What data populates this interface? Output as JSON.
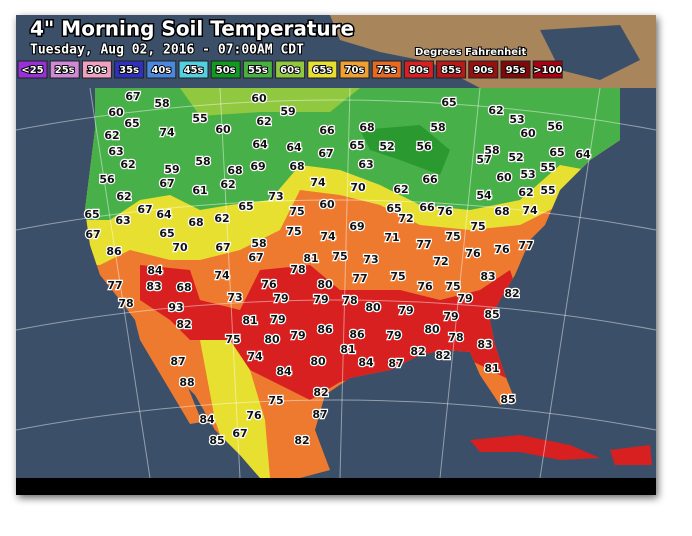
{
  "header": {
    "title": "4\" Morning Soil Temperature",
    "subtitle": "Tuesday, Aug 02, 2016 - 07:00AM CDT",
    "units": "Degrees Fahrenheit"
  },
  "legend": [
    {
      "label": "<25",
      "color": "#9a30d8"
    },
    {
      "label": "25s",
      "color": "#d088d8"
    },
    {
      "label": "30s",
      "color": "#f0a0c0"
    },
    {
      "label": "35s",
      "color": "#3030c0"
    },
    {
      "label": "40s",
      "color": "#4a88e0"
    },
    {
      "label": "45s",
      "color": "#50d0e0"
    },
    {
      "label": "50s",
      "color": "#109a20"
    },
    {
      "label": "55s",
      "color": "#48b040"
    },
    {
      "label": "60s",
      "color": "#90c840"
    },
    {
      "label": "65s",
      "color": "#e8e030"
    },
    {
      "label": "70s",
      "color": "#f0a030"
    },
    {
      "label": "75s",
      "color": "#e86a20"
    },
    {
      "label": "80s",
      "color": "#d82020"
    },
    {
      "label": "85s",
      "color": "#b81818"
    },
    {
      "label": "90s",
      "color": "#981010"
    },
    {
      "label": "95s",
      "color": "#800808"
    },
    {
      "label": ">100",
      "color": "#a80010"
    }
  ],
  "stations": [
    67,
    58,
    60,
    59,
    65,
    62,
    53,
    56,
    60,
    55,
    60,
    62,
    66,
    68,
    58,
    60,
    65,
    62,
    74,
    64,
    64,
    67,
    65,
    52,
    56,
    58,
    65,
    64,
    63,
    62,
    58,
    68,
    69,
    68,
    63,
    57,
    52,
    59,
    74,
    70,
    66,
    60,
    53,
    55,
    56,
    67,
    61,
    62,
    62,
    54,
    62,
    55,
    62,
    67,
    64,
    73,
    65,
    60,
    65,
    66,
    76,
    72,
    68,
    74,
    65,
    63,
    68,
    62,
    75,
    69,
    71,
    77,
    75,
    75,
    76,
    77,
    67,
    65,
    70,
    67,
    58,
    75,
    74,
    86,
    67,
    78,
    81,
    75,
    73,
    72,
    76,
    84,
    74,
    77,
    75,
    83,
    77,
    83,
    68,
    76,
    80,
    76,
    75,
    82,
    78,
    93,
    73,
    79,
    79,
    78,
    80,
    79,
    79,
    82,
    81,
    79,
    86,
    86,
    79,
    80,
    79,
    85,
    75,
    80,
    79,
    78,
    83,
    87,
    74,
    80,
    81,
    84,
    87,
    82,
    82,
    88,
    84,
    82,
    81,
    75,
    87,
    85,
    84,
    76,
    85,
    67,
    82
  ]
}
